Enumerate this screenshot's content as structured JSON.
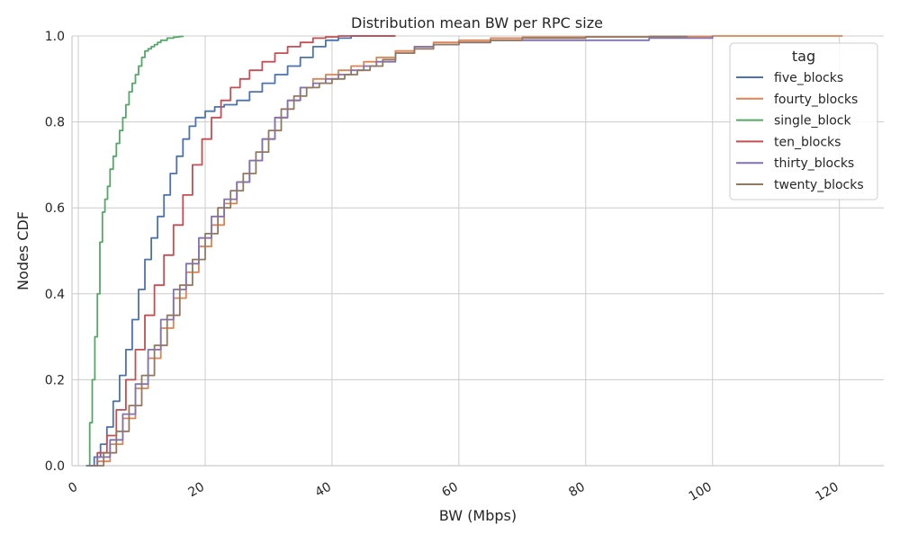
{
  "chart_data": {
    "type": "line",
    "title": "Distribution mean BW per RPC size",
    "xlabel": "BW (Mbps)",
    "ylabel": "Nodes CDF",
    "xlim": [
      -1,
      127
    ],
    "ylim": [
      0,
      1.0
    ],
    "xticks": [
      0,
      20,
      40,
      60,
      80,
      100,
      120
    ],
    "yticks": [
      0.0,
      0.2,
      0.4,
      0.6,
      0.8,
      1.0
    ],
    "xtick_labels": [
      "0",
      "20",
      "40",
      "60",
      "80",
      "100",
      "120"
    ],
    "ytick_labels": [
      "0.0",
      "0.2",
      "0.4",
      "0.6",
      "0.8",
      "1.0"
    ],
    "grid": true,
    "legend": {
      "title": "tag",
      "position": "top-right"
    },
    "series": [
      {
        "name": "five_blocks",
        "color": "#4c72b0",
        "x": [
          1.2,
          2.5,
          3.5,
          4.5,
          5.5,
          6.5,
          7.5,
          8.5,
          9.5,
          10.5,
          11.5,
          12.5,
          13.5,
          14.5,
          15.5,
          16.5,
          17.5,
          18.5,
          20,
          21.5,
          23,
          25,
          27,
          29,
          31,
          33,
          35,
          37,
          39,
          41,
          43,
          46,
          50
        ],
        "y": [
          0.0,
          0.02,
          0.05,
          0.09,
          0.15,
          0.21,
          0.27,
          0.34,
          0.41,
          0.48,
          0.53,
          0.58,
          0.63,
          0.68,
          0.72,
          0.76,
          0.79,
          0.81,
          0.825,
          0.835,
          0.84,
          0.85,
          0.87,
          0.89,
          0.91,
          0.93,
          0.95,
          0.975,
          0.99,
          0.995,
          1.0,
          1.0,
          1.0
        ]
      },
      {
        "name": "fourty_blocks",
        "color": "#dd8452",
        "x": [
          1.8,
          3,
          5,
          7,
          9,
          11,
          13,
          15,
          17,
          19,
          21,
          23,
          25,
          27,
          29,
          31,
          33,
          35,
          37,
          39,
          41,
          43,
          45,
          47,
          50,
          53,
          56,
          60,
          65,
          70,
          80,
          90,
          100,
          110,
          120.5
        ],
        "y": [
          0.0,
          0.01,
          0.05,
          0.11,
          0.18,
          0.25,
          0.32,
          0.39,
          0.45,
          0.51,
          0.56,
          0.61,
          0.66,
          0.71,
          0.76,
          0.81,
          0.85,
          0.88,
          0.9,
          0.91,
          0.92,
          0.93,
          0.94,
          0.95,
          0.965,
          0.975,
          0.985,
          0.99,
          0.995,
          0.997,
          0.998,
          0.999,
          1.0,
          1.0,
          1.0
        ]
      },
      {
        "name": "single_block",
        "color": "#55a868",
        "x": [
          1.3,
          1.8,
          2.2,
          2.6,
          3.0,
          3.4,
          3.8,
          4.2,
          4.6,
          5.0,
          5.5,
          6.0,
          6.5,
          7.0,
          7.5,
          8.0,
          8.5,
          9.0,
          9.5,
          10.0,
          10.5,
          11.0,
          11.5,
          12.0,
          12.5,
          13.0,
          13.5,
          14.0,
          14.5,
          15.0,
          15.5,
          16.0,
          16.5
        ],
        "y": [
          0.0,
          0.1,
          0.2,
          0.3,
          0.4,
          0.52,
          0.59,
          0.62,
          0.65,
          0.69,
          0.72,
          0.75,
          0.78,
          0.81,
          0.84,
          0.87,
          0.89,
          0.91,
          0.93,
          0.95,
          0.965,
          0.97,
          0.975,
          0.98,
          0.985,
          0.99,
          0.99,
          0.995,
          0.995,
          0.997,
          0.998,
          0.999,
          1.0
        ]
      },
      {
        "name": "ten_blocks",
        "color": "#c44e52",
        "x": [
          1.5,
          3,
          4.5,
          6,
          7.5,
          9,
          10.5,
          12,
          13.5,
          15,
          16.5,
          18,
          19.5,
          21,
          22.5,
          24,
          25.5,
          27,
          29,
          31,
          33,
          35,
          37,
          39,
          41,
          43,
          46,
          50
        ],
        "y": [
          0.0,
          0.03,
          0.07,
          0.13,
          0.2,
          0.27,
          0.35,
          0.42,
          0.49,
          0.56,
          0.63,
          0.7,
          0.76,
          0.81,
          0.85,
          0.88,
          0.9,
          0.92,
          0.94,
          0.96,
          0.975,
          0.985,
          0.995,
          0.998,
          1.0,
          1.0,
          1.0,
          1.0
        ]
      },
      {
        "name": "thirty_blocks",
        "color": "#8172b3",
        "x": [
          1.5,
          3,
          5,
          7,
          9,
          11,
          13,
          15,
          17,
          19,
          21,
          23,
          25,
          27,
          29,
          31,
          33,
          35,
          37,
          39,
          41,
          43,
          45,
          47,
          50,
          53,
          56,
          60,
          65,
          70,
          80,
          90,
          100
        ],
        "y": [
          0.0,
          0.02,
          0.06,
          0.12,
          0.19,
          0.27,
          0.34,
          0.41,
          0.47,
          0.53,
          0.58,
          0.62,
          0.66,
          0.71,
          0.76,
          0.81,
          0.85,
          0.88,
          0.89,
          0.9,
          0.91,
          0.92,
          0.93,
          0.94,
          0.96,
          0.975,
          0.98,
          0.985,
          0.99,
          0.99,
          0.99,
          0.995,
          1.0
        ]
      },
      {
        "name": "twenty_blocks",
        "color": "#937860",
        "x": [
          2,
          4,
          6,
          8,
          10,
          12,
          14,
          16,
          18,
          20,
          22,
          24,
          26,
          28,
          30,
          32,
          34,
          36,
          38,
          40,
          42,
          44,
          46,
          48,
          50,
          53,
          56,
          60,
          65,
          70,
          80,
          90,
          96
        ],
        "y": [
          0.0,
          0.03,
          0.08,
          0.14,
          0.21,
          0.28,
          0.35,
          0.42,
          0.48,
          0.54,
          0.6,
          0.64,
          0.68,
          0.73,
          0.78,
          0.83,
          0.86,
          0.88,
          0.89,
          0.9,
          0.91,
          0.92,
          0.93,
          0.945,
          0.96,
          0.97,
          0.98,
          0.985,
          0.99,
          0.995,
          0.998,
          0.999,
          1.0
        ]
      }
    ]
  }
}
